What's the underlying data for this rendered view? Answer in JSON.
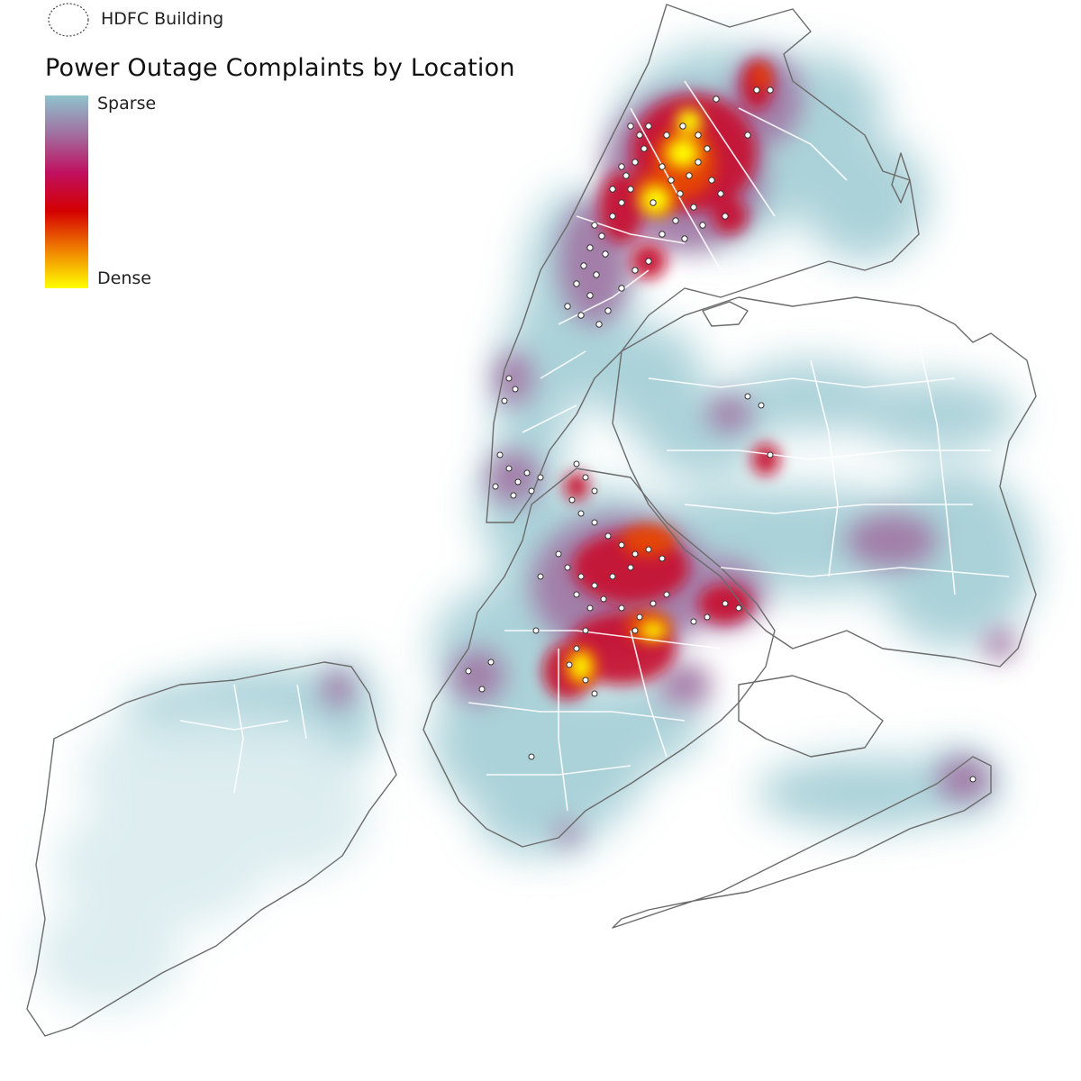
{
  "legend": {
    "symbol_label": "HDFC Building",
    "title": "Power Outage Complaints by Location",
    "sparse_label": "Sparse",
    "dense_label": "Dense",
    "ramp_colors": [
      "#8fc3cc",
      "#a06fa0",
      "#c01060",
      "#d40000",
      "#f08000",
      "#ffff00"
    ]
  },
  "map": {
    "boundary_color": "#6b6b6b",
    "internal_line_color": "#ffffff",
    "marker_fill": "#ffffff",
    "marker_stroke": "#333333",
    "heat_colors": {
      "sparse": "#8fc3cc",
      "medium": "#a06fa0",
      "high": "#c8102e",
      "very_high": "#e84a00",
      "dense": "#ffff00"
    }
  }
}
